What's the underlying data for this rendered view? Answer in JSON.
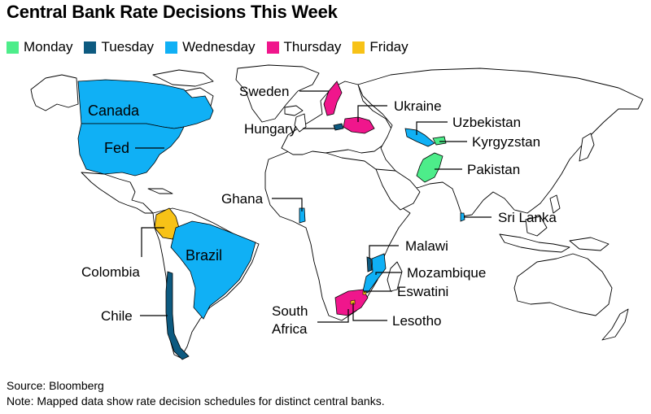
{
  "title": "Central Bank Rate Decisions This Week",
  "legend": [
    {
      "label": "Monday",
      "color": "#4ded8a"
    },
    {
      "label": "Tuesday",
      "color": "#0d5a80"
    },
    {
      "label": "Wednesday",
      "color": "#10b0f5"
    },
    {
      "label": "Thursday",
      "color": "#f0168c"
    },
    {
      "label": "Friday",
      "color": "#f7c217"
    }
  ],
  "regions": {
    "canada": {
      "label": "Canada",
      "day": "Wednesday"
    },
    "fed": {
      "label": "Fed",
      "day": "Wednesday"
    },
    "brazil": {
      "label": "Brazil",
      "day": "Wednesday"
    },
    "colombia": {
      "label": "Colombia",
      "day": "Friday"
    },
    "chile": {
      "label": "Chile",
      "day": "Tuesday"
    },
    "sweden": {
      "label": "Sweden",
      "day": "Thursday"
    },
    "ukraine": {
      "label": "Ukraine",
      "day": "Thursday"
    },
    "hungary": {
      "label": "Hungary",
      "day": "Tuesday"
    },
    "uzbekistan": {
      "label": "Uzbekistan",
      "day": "Wednesday"
    },
    "kyrgyzstan": {
      "label": "Kyrgyzstan",
      "day": "Monday"
    },
    "pakistan": {
      "label": "Pakistan",
      "day": "Monday"
    },
    "sri_lanka": {
      "label": "Sri Lanka",
      "day": "Wednesday"
    },
    "ghana": {
      "label": "Ghana",
      "day": "Wednesday"
    },
    "malawi": {
      "label": "Malawi",
      "day": "Tuesday"
    },
    "mozambique": {
      "label": "Mozambique",
      "day": "Wednesday"
    },
    "eswatini": {
      "label": "Eswatini",
      "day": "Friday"
    },
    "south_africa": {
      "label": "South Africa",
      "label_line1": "South",
      "label_line2": "Africa",
      "day": "Thursday"
    },
    "lesotho": {
      "label": "Lesotho",
      "day": "Friday"
    }
  },
  "footer": {
    "source": "Source: Bloomberg",
    "note": "Note: Mapped data show rate decision schedules for distinct central banks."
  }
}
